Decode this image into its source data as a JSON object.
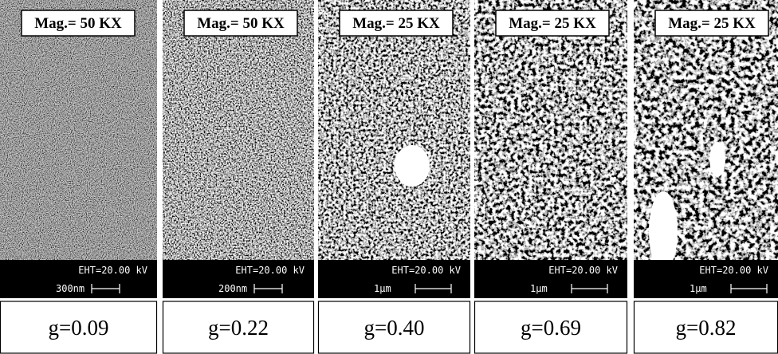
{
  "panels": [
    {
      "magnification": "Mag.= 50 KX",
      "eht": "EHT=20.00 kV",
      "scale": "300nm",
      "caption": "g=0.09"
    },
    {
      "magnification": "Mag.= 50 KX",
      "eht": "EHT=20.00 kV",
      "scale": "200nm",
      "caption": "g=0.22"
    },
    {
      "magnification": "Mag.= 25 KX",
      "eht": "EHT=20.00 kV",
      "scale": "1µm",
      "caption": "g=0.40"
    },
    {
      "magnification": "Mag.= 25 KX",
      "eht": "EHT=20.00 kV",
      "scale": "1µm",
      "caption": "g=0.69"
    },
    {
      "magnification": "Mag.= 25 KX",
      "eht": "EHT=20.00 kV",
      "scale": "1µm",
      "caption": "g=0.82"
    }
  ]
}
